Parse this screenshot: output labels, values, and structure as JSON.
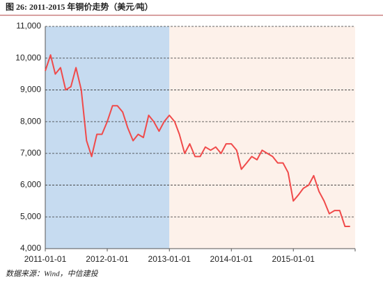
{
  "chart_data": {
    "type": "line",
    "title": "图 26: 2011-2015 年铜价走势（美元/吨）",
    "source": "数据来源：Wind，中信建投",
    "x": [
      "2011-01-01",
      "2011-02-01",
      "2011-03-01",
      "2011-04-01",
      "2011-05-01",
      "2011-06-01",
      "2011-07-01",
      "2011-08-01",
      "2011-09-01",
      "2011-10-01",
      "2011-11-01",
      "2011-12-01",
      "2012-01-01",
      "2012-02-01",
      "2012-03-01",
      "2012-04-01",
      "2012-05-01",
      "2012-06-01",
      "2012-07-01",
      "2012-08-01",
      "2012-09-01",
      "2012-10-01",
      "2012-11-01",
      "2012-12-01",
      "2013-01-01",
      "2013-02-01",
      "2013-03-01",
      "2013-04-01",
      "2013-05-01",
      "2013-06-01",
      "2013-07-01",
      "2013-08-01",
      "2013-09-01",
      "2013-10-01",
      "2013-11-01",
      "2013-12-01",
      "2014-01-01",
      "2014-02-01",
      "2014-03-01",
      "2014-04-01",
      "2014-05-01",
      "2014-06-01",
      "2014-07-01",
      "2014-08-01",
      "2014-09-01",
      "2014-10-01",
      "2014-11-01",
      "2014-12-01",
      "2015-01-01",
      "2015-02-01",
      "2015-03-01",
      "2015-04-01",
      "2015-05-01",
      "2015-06-01",
      "2015-07-01",
      "2015-08-01",
      "2015-09-01",
      "2015-10-01",
      "2015-11-01",
      "2015-12-01"
    ],
    "series": [
      {
        "name": "铜价",
        "color": "#f04a4a",
        "values": [
          9600,
          10100,
          9500,
          9700,
          9000,
          9100,
          9700,
          9000,
          7400,
          6900,
          7600,
          7600,
          8000,
          8500,
          8500,
          8300,
          7800,
          7400,
          7600,
          7500,
          8200,
          8000,
          7700,
          8000,
          8200,
          8000,
          7600,
          7000,
          7300,
          6900,
          6900,
          7200,
          7100,
          7200,
          7000,
          7300,
          7300,
          7100,
          6500,
          6700,
          6900,
          6800,
          7100,
          7000,
          6900,
          6700,
          6700,
          6400,
          5500,
          5700,
          5900,
          6000,
          6300,
          5800,
          5500,
          5100,
          5200,
          5200,
          4700,
          4700
        ]
      }
    ],
    "xlim": [
      "2011-01-01",
      "2015-12-31"
    ],
    "xticks": [
      "2011-01-01",
      "2012-01-01",
      "2013-01-01",
      "2014-01-01",
      "2015-01-01"
    ],
    "ylim": [
      4000,
      11000
    ],
    "yticks": [
      {
        "value": 4000,
        "label": "4,000"
      },
      {
        "value": 5000,
        "label": "5,000"
      },
      {
        "value": 6000,
        "label": "6,000"
      },
      {
        "value": 7000,
        "label": "7,000"
      },
      {
        "value": 8000,
        "label": "8,000"
      },
      {
        "value": 9000,
        "label": "9,000"
      },
      {
        "value": 10000,
        "label": "10,000"
      },
      {
        "value": 11000,
        "label": "11,000"
      }
    ],
    "grid": true,
    "bands": [
      {
        "x": [
          "2011-01-01",
          "2013-01-01"
        ],
        "color": "#c6dbf0"
      },
      {
        "x": [
          "2013-01-01",
          "2015-12-31"
        ],
        "color": "#fdf1ea"
      }
    ]
  }
}
